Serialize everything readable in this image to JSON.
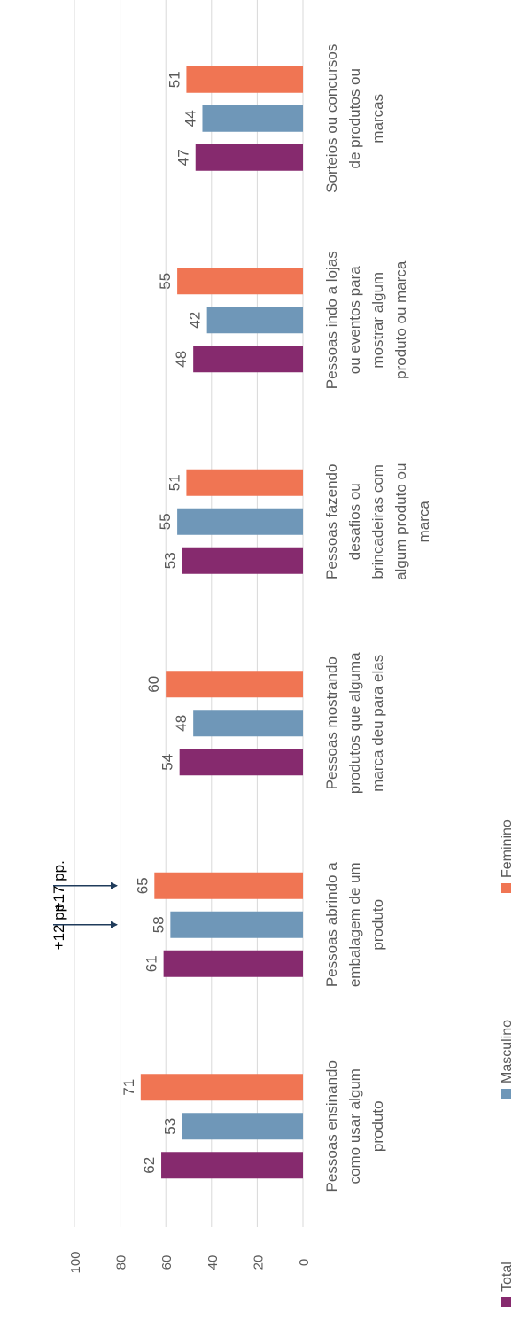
{
  "chart_data": {
    "type": "bar",
    "orientation": "horizontal",
    "categories": [
      [
        "Pessoas ensinando",
        "como usar algum",
        "produto"
      ],
      [
        "Pessoas abrindo a",
        "embalagem de um",
        "produto"
      ],
      [
        "Pessoas mostrando",
        "produtos que alguma",
        "marca deu para elas"
      ],
      [
        "Pessoas fazendo",
        "desafios ou",
        "brincadeiras com",
        "algum produto ou",
        "marca"
      ],
      [
        "Pessoas indo a lojas",
        "ou eventos para",
        "mostrar algum",
        "produto ou marca"
      ],
      [
        "Sorteios ou concursos",
        "de produtos ou",
        "marcas"
      ]
    ],
    "series": [
      {
        "name": "Total",
        "color": "#862a6e",
        "values": [
          62,
          61,
          54,
          53,
          48,
          47
        ]
      },
      {
        "name": "Masculino",
        "color": "#6f97b8",
        "values": [
          53,
          58,
          48,
          55,
          42,
          44
        ]
      },
      {
        "name": "Feminino",
        "color": "#f07553",
        "values": [
          71,
          65,
          60,
          51,
          55,
          51
        ]
      }
    ],
    "value_ticks": [
      "0",
      "20",
      "40",
      "60",
      "80",
      "100"
    ],
    "ylim": [
      0,
      100
    ],
    "grid": true,
    "legend": "bottom",
    "annotations": [
      {
        "text": "+12 pp.",
        "category_index": 1,
        "series": "Masculino"
      },
      {
        "text": "+17 pp.",
        "category_index": 1,
        "series": "Feminino"
      }
    ]
  }
}
